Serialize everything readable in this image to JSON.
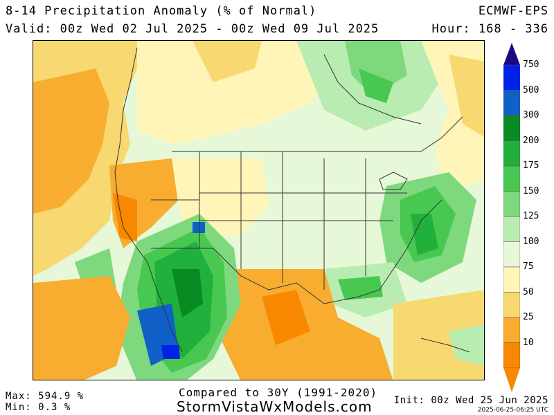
{
  "header": {
    "title": "8-14 Precipitation Anomaly (% of Normal)",
    "valid": "Valid: 00z Wed 02 Jul 2025 - 00z Wed 09 Jul 2025",
    "model": "ECMWF-EPS",
    "hour": "Hour: 168 - 336"
  },
  "legend": {
    "labels": [
      "750",
      "500",
      "300",
      "200",
      "175",
      "150",
      "125",
      "100",
      "75",
      "50",
      "25",
      "10"
    ],
    "colors": [
      "#1a0a80",
      "#0022e8",
      "#1060c8",
      "#0a8a22",
      "#22b03c",
      "#48c850",
      "#7ed87e",
      "#b8ecb0",
      "#e6f8d8",
      "#fff5b8",
      "#f8d870",
      "#f8ac30",
      "#f88800"
    ]
  },
  "footer": {
    "max": "Max: 594.9 %",
    "min": "Min: 0.3 %",
    "compared": "Compared to 30Y (1991-2020)",
    "site": "StormVistaWxModels.com",
    "init": "Init: 00z Wed 25 Jun 2025",
    "stamp": "2025-06-25-06:25 UTC"
  }
}
